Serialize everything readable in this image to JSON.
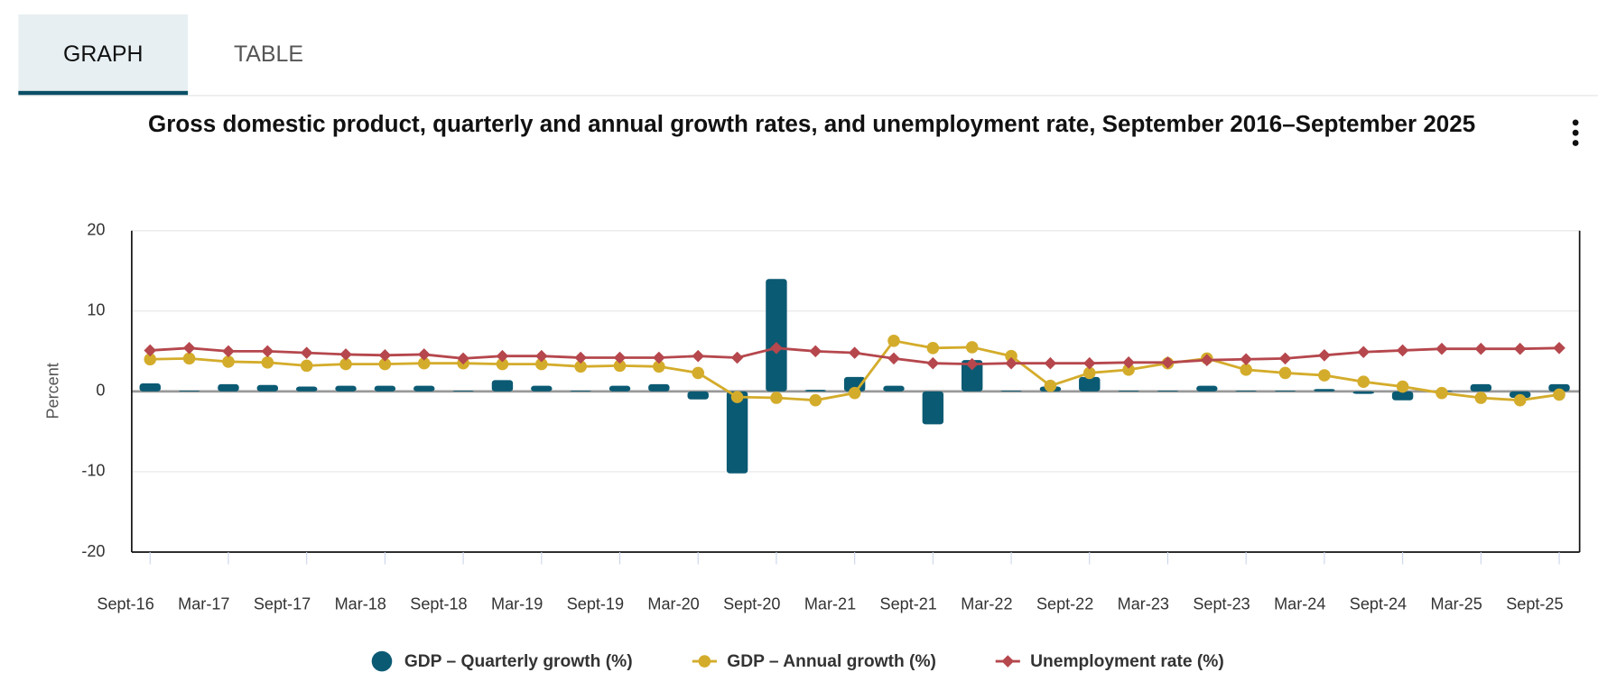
{
  "tabs": [
    "GRAPH",
    "TABLE"
  ],
  "chart_data": {
    "type": "combo",
    "title": "Gross domestic product, quarterly and annual growth rates, and unemployment rate, September 2016–September 2025",
    "y_label": "Percent",
    "categories": [
      "Sept-16",
      null,
      "Mar-17",
      null,
      "Sept-17",
      null,
      "Mar-18",
      null,
      "Sept-18",
      null,
      "Mar-19",
      null,
      "Sept-19",
      null,
      "Mar-20",
      null,
      "Sept-20",
      null,
      "Mar-21",
      null,
      "Sept-21",
      null,
      "Mar-22",
      null,
      "Sept-22",
      null,
      "Mar-23",
      null,
      "Sept-23",
      null,
      "Mar-24",
      null,
      "Sept-24",
      null,
      "Mar-25",
      null,
      "Sept-25"
    ],
    "series": [
      {
        "name": "GDP – Quarterly growth (%)",
        "type": "bar",
        "color": "#0b5a73",
        "values": [
          1.0,
          0.1,
          0.9,
          0.8,
          0.6,
          0.7,
          0.7,
          0.7,
          0.1,
          1.4,
          0.7,
          0.1,
          0.7,
          0.9,
          -1.0,
          -10.2,
          14.0,
          0.2,
          1.8,
          0.7,
          -4.1,
          3.9,
          0.1,
          0.6,
          1.8,
          0.1,
          0.1,
          0.7,
          0.1,
          0.1,
          0.3,
          -0.3,
          -1.1,
          0.1,
          0.9,
          -0.8,
          0.9
        ]
      },
      {
        "name": "GDP – Annual growth (%)",
        "type": "line",
        "marker": "circle",
        "color": "#d4ac2b",
        "values": [
          4.0,
          4.1,
          3.7,
          3.6,
          3.2,
          3.4,
          3.4,
          3.5,
          3.5,
          3.4,
          3.4,
          3.1,
          3.2,
          3.1,
          2.3,
          -0.7,
          -0.8,
          -1.1,
          -0.2,
          6.3,
          5.4,
          5.5,
          4.4,
          0.7,
          2.3,
          2.7,
          3.5,
          4.1,
          2.7,
          2.3,
          2.0,
          1.2,
          0.6,
          -0.2,
          -0.8,
          -1.1,
          -0.4
        ]
      },
      {
        "name": "Unemployment rate (%)",
        "type": "line",
        "marker": "diamond",
        "color": "#b5474d",
        "values": [
          5.1,
          5.4,
          5.0,
          5.0,
          4.8,
          4.6,
          4.5,
          4.6,
          4.1,
          4.4,
          4.4,
          4.2,
          4.2,
          4.2,
          4.4,
          4.2,
          5.4,
          5.0,
          4.8,
          4.1,
          3.5,
          3.4,
          3.5,
          3.5,
          3.5,
          3.6,
          3.6,
          3.9,
          4.0,
          4.1,
          4.5,
          4.9,
          5.1,
          5.3,
          5.3,
          5.3,
          5.4
        ]
      }
    ],
    "ylim": [
      -20,
      20
    ],
    "yticks": [
      -20,
      -10,
      0,
      10,
      20
    ],
    "grid": true
  }
}
